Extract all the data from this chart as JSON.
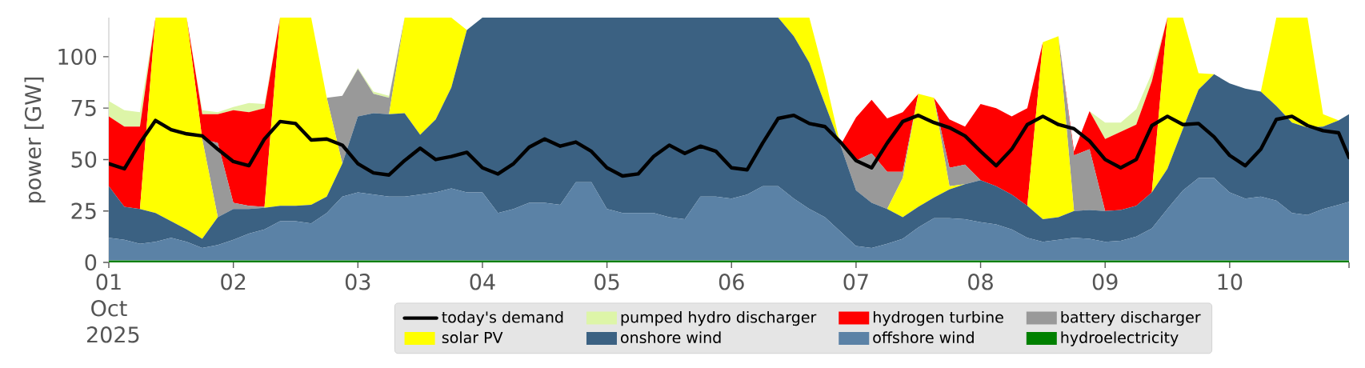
{
  "chart_data": {
    "type": "area",
    "stacked": true,
    "ylabel": "power [GW]",
    "legend": "bottom",
    "xlim": [
      "2025-10-01T00:00",
      "2025-10-10T23:00"
    ],
    "ylim": [
      0,
      119
    ],
    "xticks": [
      {
        "value": "2025-10-01",
        "label": "01 Oct 2025"
      },
      {
        "value": "2025-10-02",
        "label": "02"
      },
      {
        "value": "2025-10-03",
        "label": "03"
      },
      {
        "value": "2025-10-04",
        "label": "04"
      },
      {
        "value": "2025-10-05",
        "label": "05"
      },
      {
        "value": "2025-10-06",
        "label": "06"
      },
      {
        "value": "2025-10-07",
        "label": "07"
      },
      {
        "value": "2025-10-08",
        "label": "08"
      },
      {
        "value": "2025-10-09",
        "label": "09"
      },
      {
        "value": "2025-10-10",
        "label": "10"
      },
      {
        "value": "2025-10-10T23:00",
        "label": null
      }
    ],
    "yticks": [
      0,
      25,
      50,
      75,
      100
    ],
    "x": [
      "2025-10-01T00:00",
      "2025-10-01T03:00",
      "2025-10-01T06:00",
      "2025-10-01T09:00",
      "2025-10-01T12:00",
      "2025-10-01T15:00",
      "2025-10-01T18:00",
      "2025-10-01T21:00",
      "2025-10-02T00:00",
      "2025-10-02T03:00",
      "2025-10-02T06:00",
      "2025-10-02T09:00",
      "2025-10-02T12:00",
      "2025-10-02T15:00",
      "2025-10-02T18:00",
      "2025-10-02T21:00",
      "2025-10-03T00:00",
      "2025-10-03T03:00",
      "2025-10-03T06:00",
      "2025-10-03T09:00",
      "2025-10-03T12:00",
      "2025-10-03T15:00",
      "2025-10-03T18:00",
      "2025-10-03T21:00",
      "2025-10-04T00:00",
      "2025-10-04T03:00",
      "2025-10-04T06:00",
      "2025-10-04T09:00",
      "2025-10-04T12:00",
      "2025-10-04T15:00",
      "2025-10-04T18:00",
      "2025-10-04T21:00",
      "2025-10-05T00:00",
      "2025-10-05T03:00",
      "2025-10-05T06:00",
      "2025-10-05T09:00",
      "2025-10-05T12:00",
      "2025-10-05T15:00",
      "2025-10-05T18:00",
      "2025-10-05T21:00",
      "2025-10-06T00:00",
      "2025-10-06T03:00",
      "2025-10-06T06:00",
      "2025-10-06T09:00",
      "2025-10-06T12:00",
      "2025-10-06T15:00",
      "2025-10-06T18:00",
      "2025-10-06T21:00",
      "2025-10-07T00:00",
      "2025-10-07T03:00",
      "2025-10-07T06:00",
      "2025-10-07T09:00",
      "2025-10-07T12:00",
      "2025-10-07T15:00",
      "2025-10-07T18:00",
      "2025-10-07T21:00",
      "2025-10-08T00:00",
      "2025-10-08T03:00",
      "2025-10-08T06:00",
      "2025-10-08T09:00",
      "2025-10-08T12:00",
      "2025-10-08T15:00",
      "2025-10-08T18:00",
      "2025-10-08T21:00",
      "2025-10-09T00:00",
      "2025-10-09T03:00",
      "2025-10-09T06:00",
      "2025-10-09T09:00",
      "2025-10-09T12:00",
      "2025-10-09T15:00",
      "2025-10-09T18:00",
      "2025-10-09T21:00",
      "2025-10-10T00:00",
      "2025-10-10T03:00",
      "2025-10-10T06:00",
      "2025-10-10T09:00",
      "2025-10-10T12:00",
      "2025-10-10T15:00",
      "2025-10-10T18:00",
      "2025-10-10T21:00",
      "2025-10-10T23:00"
    ],
    "series": [
      {
        "name": "hydroelectricity",
        "color": "#008000",
        "values": [
          1,
          1,
          1,
          1,
          1,
          1,
          1,
          1,
          1,
          1,
          1,
          1,
          1,
          1,
          1,
          1,
          1,
          1,
          1,
          1,
          1,
          1,
          1,
          1,
          1,
          1,
          1,
          1,
          1,
          1,
          1,
          1,
          1,
          1,
          1,
          1,
          1,
          1,
          1,
          1,
          1,
          1,
          1,
          1,
          1,
          1,
          1,
          1,
          1,
          1,
          1,
          1,
          1,
          1,
          1,
          1,
          1,
          1,
          1,
          1,
          1,
          1,
          1,
          1,
          1,
          1,
          1,
          1,
          1,
          1,
          1,
          1,
          1,
          1,
          1,
          1,
          1,
          1,
          1,
          1,
          1
        ]
      },
      {
        "name": "offshore wind",
        "color": "#5b82a6",
        "values": [
          11,
          10,
          8,
          9,
          11,
          9,
          6,
          7.5,
          10,
          13,
          15,
          19,
          19,
          18,
          23,
          31,
          33,
          32,
          31,
          31,
          32,
          33,
          35,
          33,
          33,
          23,
          25,
          28,
          28,
          27,
          38,
          38,
          25,
          23,
          23,
          23,
          21,
          20,
          31,
          31,
          30,
          32,
          36,
          36,
          30,
          25,
          21,
          14,
          7,
          6,
          8,
          10.5,
          16,
          20.5,
          20.5,
          20,
          18.5,
          17.5,
          15,
          11,
          9,
          10,
          11,
          10.5,
          9,
          9.5,
          11.5,
          15.5,
          25,
          34,
          40,
          40,
          33,
          30,
          31,
          29,
          23,
          22,
          25,
          27,
          28.5
        ]
      },
      {
        "name": "onshore wind",
        "color": "#3b6182",
        "values": [
          25,
          16,
          17,
          14,
          8,
          6,
          4.5,
          13.5,
          15,
          12,
          10.5,
          7.5,
          7.5,
          9,
          8,
          16,
          37,
          39.5,
          40,
          40.5,
          29,
          35.5,
          49,
          79,
          85,
          95,
          93,
          90,
          90,
          91,
          80,
          80,
          93,
          95,
          95,
          95,
          97,
          98,
          87,
          87,
          88,
          86,
          82,
          82,
          79,
          71,
          55,
          42,
          27,
          22,
          17,
          10.5,
          10,
          10,
          14,
          17,
          20.5,
          18.5,
          17,
          15.5,
          11,
          11,
          13,
          14,
          15,
          15,
          15,
          17.5,
          19.5,
          30,
          43,
          50.5,
          53,
          53.5,
          51,
          46,
          44,
          42.5,
          40,
          41,
          42.5
        ]
      },
      {
        "name": "solar PV",
        "color": "#ffff00",
        "values": [
          0,
          0,
          0,
          95,
          99,
          103,
          48.5,
          0,
          0,
          0,
          0,
          91.5,
          91.5,
          91,
          48,
          0,
          0,
          0,
          0,
          46.5,
          57,
          49.5,
          34,
          0,
          0,
          0,
          0,
          0,
          0,
          0,
          0,
          0,
          0,
          0,
          0,
          0,
          0,
          0,
          0,
          0,
          0,
          0,
          0,
          0,
          9,
          22,
          13,
          0,
          0,
          0,
          0,
          19,
          55,
          48.5,
          1.5,
          0,
          0,
          0,
          0,
          0,
          86,
          88,
          0,
          0,
          0,
          0,
          0,
          0,
          73.5,
          54,
          8,
          0,
          0,
          0,
          0,
          43,
          51,
          53.5,
          6,
          0,
          0
        ]
      },
      {
        "name": "battery discharger",
        "color": "#999999",
        "values": [
          0,
          0,
          0,
          0,
          0,
          0,
          0,
          36,
          3,
          1.5,
          0.5,
          0,
          0,
          0,
          0,
          33,
          23,
          9.5,
          8,
          0,
          0,
          0,
          0,
          0,
          0,
          0,
          0,
          0,
          0,
          0,
          0,
          0,
          0,
          0,
          0,
          0,
          0,
          0,
          0,
          0,
          0,
          0,
          0,
          0,
          0,
          0,
          0,
          0,
          14.5,
          24,
          18,
          3,
          0,
          0,
          9,
          9.5,
          0,
          0,
          0,
          0,
          0,
          0,
          27,
          29.5,
          0,
          0,
          0,
          0,
          0,
          0,
          0,
          0,
          0,
          0,
          0,
          0,
          0,
          0,
          0,
          0,
          0
        ]
      },
      {
        "name": "hydrogen turbine",
        "color": "#ff0000",
        "values": [
          34,
          39,
          40,
          0,
          0,
          0,
          12,
          14,
          45,
          45.5,
          48,
          0,
          0,
          0,
          0,
          0,
          0,
          0,
          0,
          0,
          0,
          0,
          0,
          0,
          0,
          0,
          0,
          0,
          0,
          0,
          0,
          0,
          0,
          0,
          0,
          0,
          0,
          0,
          0,
          0,
          0,
          0,
          0,
          0,
          0,
          0,
          0,
          0,
          21,
          26,
          26,
          29,
          0,
          0,
          23.5,
          18.5,
          37,
          38,
          38,
          47.5,
          0,
          0,
          2,
          18.5,
          35,
          38,
          39.5,
          54,
          0,
          0,
          0,
          0,
          0,
          0,
          0,
          0,
          0,
          0,
          0,
          0,
          0
        ]
      },
      {
        "name": "pumped hydro discharger",
        "color": "#ddf5a8",
        "values": [
          7.5,
          8,
          7,
          0,
          0,
          0,
          2,
          1,
          1.5,
          4.5,
          2,
          0,
          0,
          0,
          0,
          0,
          0.5,
          1,
          1,
          0,
          0,
          0,
          0,
          0,
          0,
          0,
          0,
          0,
          0,
          0,
          0,
          0,
          0,
          0,
          0,
          0,
          0,
          0,
          0,
          0,
          0,
          0,
          0,
          0,
          0,
          0,
          0,
          0,
          0,
          0,
          0,
          0,
          0,
          0,
          0,
          0,
          0,
          0,
          0,
          0,
          0,
          0,
          0,
          0,
          8,
          4.5,
          7.5,
          4,
          0,
          0,
          0,
          0,
          0,
          0,
          0,
          0,
          0,
          0,
          0,
          0,
          0
        ]
      },
      {
        "name": "today's demand",
        "type": "line",
        "color": "#000000",
        "values": [
          48,
          45.5,
          58,
          69,
          64.5,
          62.5,
          61.5,
          55,
          49,
          47,
          60,
          68.5,
          67.5,
          59.5,
          60,
          57,
          48,
          43.5,
          42.5,
          49.5,
          55.5,
          50,
          51.5,
          53.5,
          46,
          43,
          48,
          56,
          60,
          56.5,
          58.5,
          54,
          46,
          42,
          43,
          51.5,
          57,
          53,
          56.5,
          54,
          46,
          45,
          58,
          70,
          71.5,
          67.5,
          66,
          58.5,
          49.5,
          46,
          58,
          68.5,
          71.5,
          68,
          65.5,
          61.5,
          54,
          47,
          55,
          67,
          71,
          67,
          65,
          59,
          50,
          46,
          50,
          66.5,
          71,
          67,
          67.5,
          61,
          52,
          47,
          55,
          69.5,
          71,
          66.5,
          64,
          63,
          51
        ]
      }
    ]
  }
}
